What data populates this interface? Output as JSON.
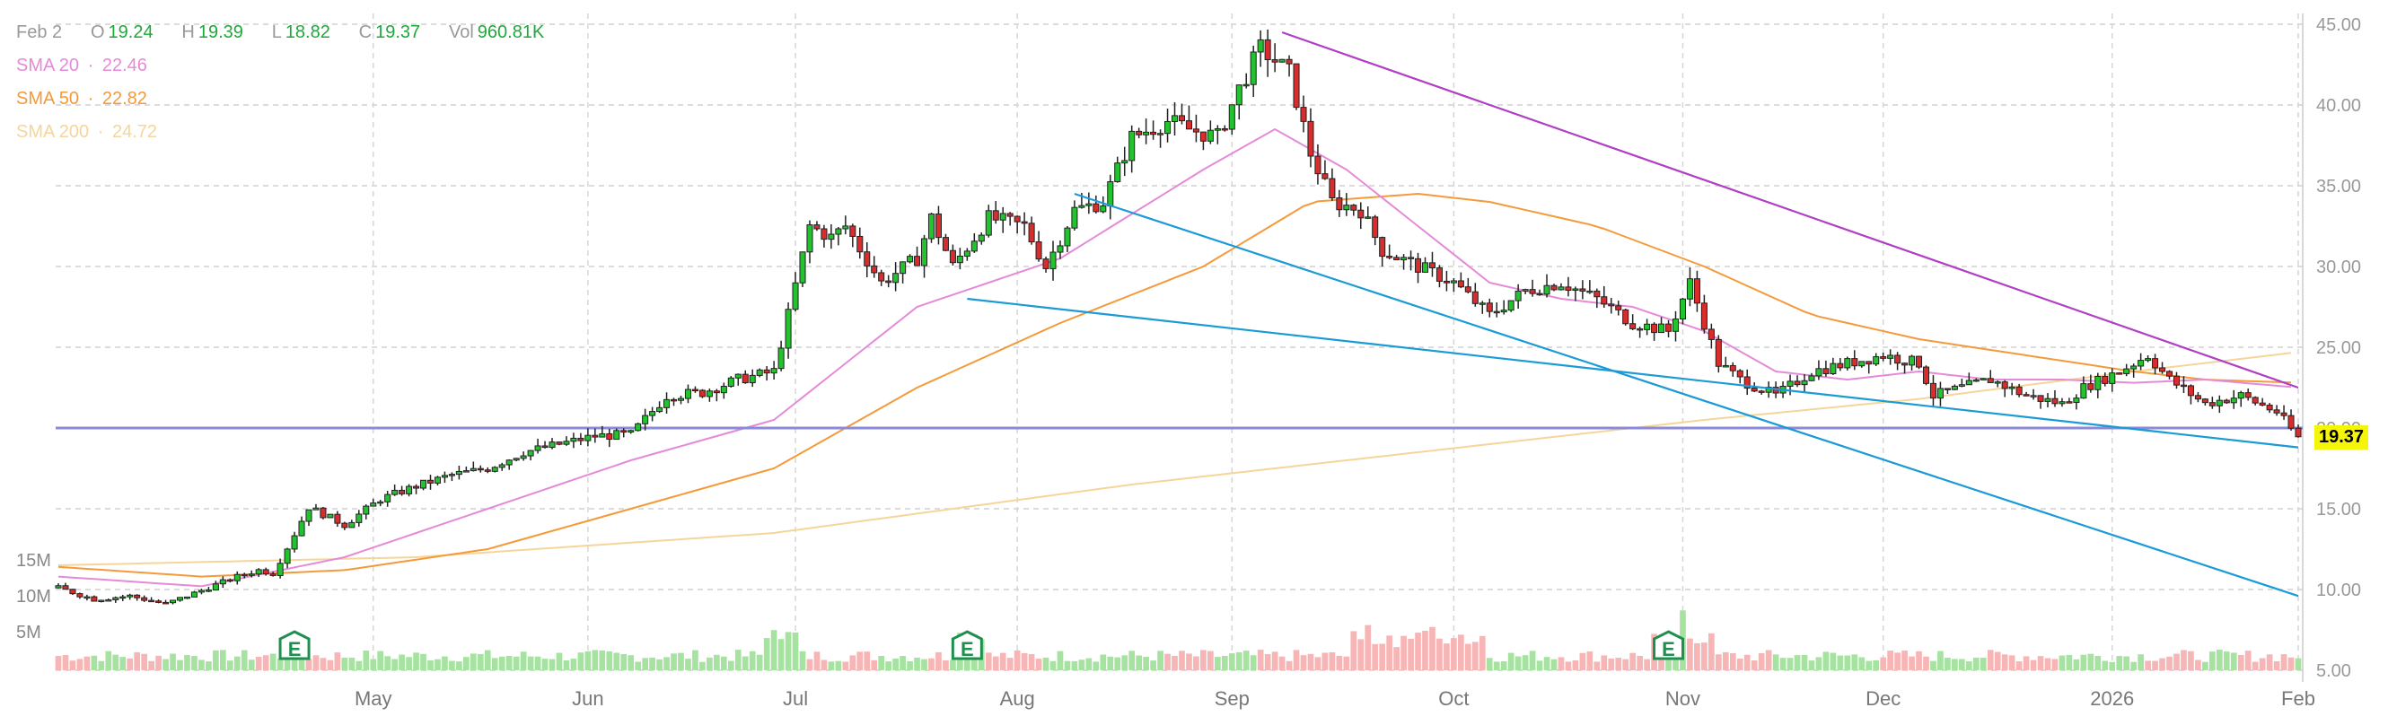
{
  "ohlc": {
    "date": "Feb 2",
    "o_label": "O",
    "o": "19.24",
    "h_label": "H",
    "h": "19.39",
    "l_label": "L",
    "l": "18.82",
    "c_label": "C",
    "c": "19.37",
    "vol_label": "Vol",
    "vol": "960.81K"
  },
  "sma": [
    {
      "label": "SMA 20",
      "sep": "·",
      "value": "22.46",
      "color": "#e58ad8"
    },
    {
      "label": "SMA 50",
      "sep": "·",
      "value": "22.82",
      "color": "#f59a3a"
    },
    {
      "label": "SMA 200",
      "sep": "·",
      "value": "24.72",
      "color": "#f5d59a"
    }
  ],
  "last_price_tag": "19.37",
  "volume_axis": [
    "15M",
    "10M",
    "5M"
  ],
  "earnings_marker": "E",
  "colors": {
    "up": "#22c32e",
    "down": "#d92c2c",
    "vol_up": "#a6e3a1",
    "vol_down": "#f7b5b5",
    "hline": "#8a8ad8",
    "trend_purple": "#b03fc4",
    "trend_blue": "#1a9ad6",
    "tag_bg": "#f5f50a"
  },
  "chart_data": {
    "type": "candlestick",
    "x_labels": [
      "May",
      "Jun",
      "Jul",
      "Aug",
      "Sep",
      "Oct",
      "Nov",
      "Dec",
      "2026",
      "Feb"
    ],
    "y_ticks": [
      "45.00",
      "40.00",
      "35.00",
      "30.00",
      "25.00",
      "20.00",
      "15.00",
      "10.00",
      "5.00"
    ],
    "ylim": [
      5,
      45
    ],
    "horizontal_line": 20.0,
    "close_path": [
      [
        0,
        10.1
      ],
      [
        5,
        9.4
      ],
      [
        10,
        9.6
      ],
      [
        15,
        9.1
      ],
      [
        18,
        9.6
      ],
      [
        25,
        10.8
      ],
      [
        28,
        11.2
      ],
      [
        30,
        11.0
      ],
      [
        32,
        12.6
      ],
      [
        35,
        15.1
      ],
      [
        40,
        14.0
      ],
      [
        45,
        15.6
      ],
      [
        50,
        16.4
      ],
      [
        55,
        17.1
      ],
      [
        60,
        17.5
      ],
      [
        65,
        18.5
      ],
      [
        70,
        19.0
      ],
      [
        75,
        19.5
      ],
      [
        80,
        19.6
      ],
      [
        85,
        22.0
      ],
      [
        90,
        22.2
      ],
      [
        95,
        23.0
      ],
      [
        100,
        23.5
      ],
      [
        102,
        27.0
      ],
      [
        105,
        32.5
      ],
      [
        108,
        31.8
      ],
      [
        110,
        32.5
      ],
      [
        115,
        29.0
      ],
      [
        120,
        30.5
      ],
      [
        122,
        33.0
      ],
      [
        125,
        30.0
      ],
      [
        130,
        33.0
      ],
      [
        135,
        32.5
      ],
      [
        138,
        30.0
      ],
      [
        142,
        33.5
      ],
      [
        146,
        34.0
      ],
      [
        150,
        38.0
      ],
      [
        155,
        39.0
      ],
      [
        158,
        38.5
      ],
      [
        162,
        38.0
      ],
      [
        165,
        41.0
      ],
      [
        168,
        43.5
      ],
      [
        172,
        42.0
      ],
      [
        175,
        37.0
      ],
      [
        178,
        34.0
      ],
      [
        182,
        33.5
      ],
      [
        185,
        31.0
      ],
      [
        190,
        30.0
      ],
      [
        195,
        29.0
      ],
      [
        200,
        27.0
      ],
      [
        205,
        28.5
      ],
      [
        210,
        29.0
      ],
      [
        215,
        28.0
      ],
      [
        220,
        26.5
      ],
      [
        225,
        26.0
      ],
      [
        228,
        29.0
      ],
      [
        232,
        24.0
      ],
      [
        235,
        23.0
      ],
      [
        240,
        22.0
      ],
      [
        245,
        23.5
      ],
      [
        250,
        24.0
      ],
      [
        255,
        24.5
      ],
      [
        260,
        24.0
      ],
      [
        262,
        22.0
      ],
      [
        266,
        22.5
      ],
      [
        270,
        23.0
      ],
      [
        275,
        22.0
      ],
      [
        280,
        21.5
      ],
      [
        283,
        22.5
      ],
      [
        288,
        23.5
      ],
      [
        292,
        24.5
      ],
      [
        295,
        23.0
      ],
      [
        300,
        21.5
      ],
      [
        305,
        22.0
      ],
      [
        310,
        21.0
      ],
      [
        313,
        19.4
      ]
    ],
    "sma20": [
      [
        0,
        10.8
      ],
      [
        20,
        10.2
      ],
      [
        40,
        12.0
      ],
      [
        60,
        15.0
      ],
      [
        80,
        18.0
      ],
      [
        100,
        20.5
      ],
      [
        120,
        27.5
      ],
      [
        140,
        30.5
      ],
      [
        160,
        36.0
      ],
      [
        170,
        38.5
      ],
      [
        180,
        36.0
      ],
      [
        190,
        32.5
      ],
      [
        200,
        29.0
      ],
      [
        210,
        28.0
      ],
      [
        220,
        27.5
      ],
      [
        230,
        26.0
      ],
      [
        240,
        23.5
      ],
      [
        250,
        23.0
      ],
      [
        260,
        23.5
      ],
      [
        270,
        23.0
      ],
      [
        280,
        23.0
      ],
      [
        290,
        22.8
      ],
      [
        300,
        23.0
      ],
      [
        313,
        22.5
      ]
    ],
    "sma50": [
      [
        0,
        11.4
      ],
      [
        20,
        10.8
      ],
      [
        40,
        11.2
      ],
      [
        60,
        12.5
      ],
      [
        80,
        15.0
      ],
      [
        100,
        17.5
      ],
      [
        120,
        22.5
      ],
      [
        140,
        26.5
      ],
      [
        160,
        30.0
      ],
      [
        175,
        34.0
      ],
      [
        190,
        34.5
      ],
      [
        200,
        34.0
      ],
      [
        215,
        32.5
      ],
      [
        230,
        30.0
      ],
      [
        245,
        27.0
      ],
      [
        260,
        25.5
      ],
      [
        275,
        24.5
      ],
      [
        290,
        23.5
      ],
      [
        300,
        23.0
      ],
      [
        313,
        22.8
      ]
    ],
    "sma200": [
      [
        0,
        11.5
      ],
      [
        50,
        12.0
      ],
      [
        100,
        13.5
      ],
      [
        150,
        16.5
      ],
      [
        200,
        19.0
      ],
      [
        230,
        20.5
      ],
      [
        260,
        21.8
      ],
      [
        290,
        23.5
      ],
      [
        313,
        24.7
      ]
    ],
    "trendlines": [
      {
        "color": "purple",
        "from": [
          171,
          44.5
        ],
        "to": [
          313,
          22.5
        ]
      },
      {
        "color": "blue",
        "from": [
          142,
          34.5
        ],
        "to": [
          313,
          9.6
        ]
      },
      {
        "color": "blue",
        "from": [
          127,
          28.0
        ],
        "to": [
          313,
          18.8
        ]
      }
    ],
    "earnings_at": [
      33,
      127,
      225
    ]
  }
}
